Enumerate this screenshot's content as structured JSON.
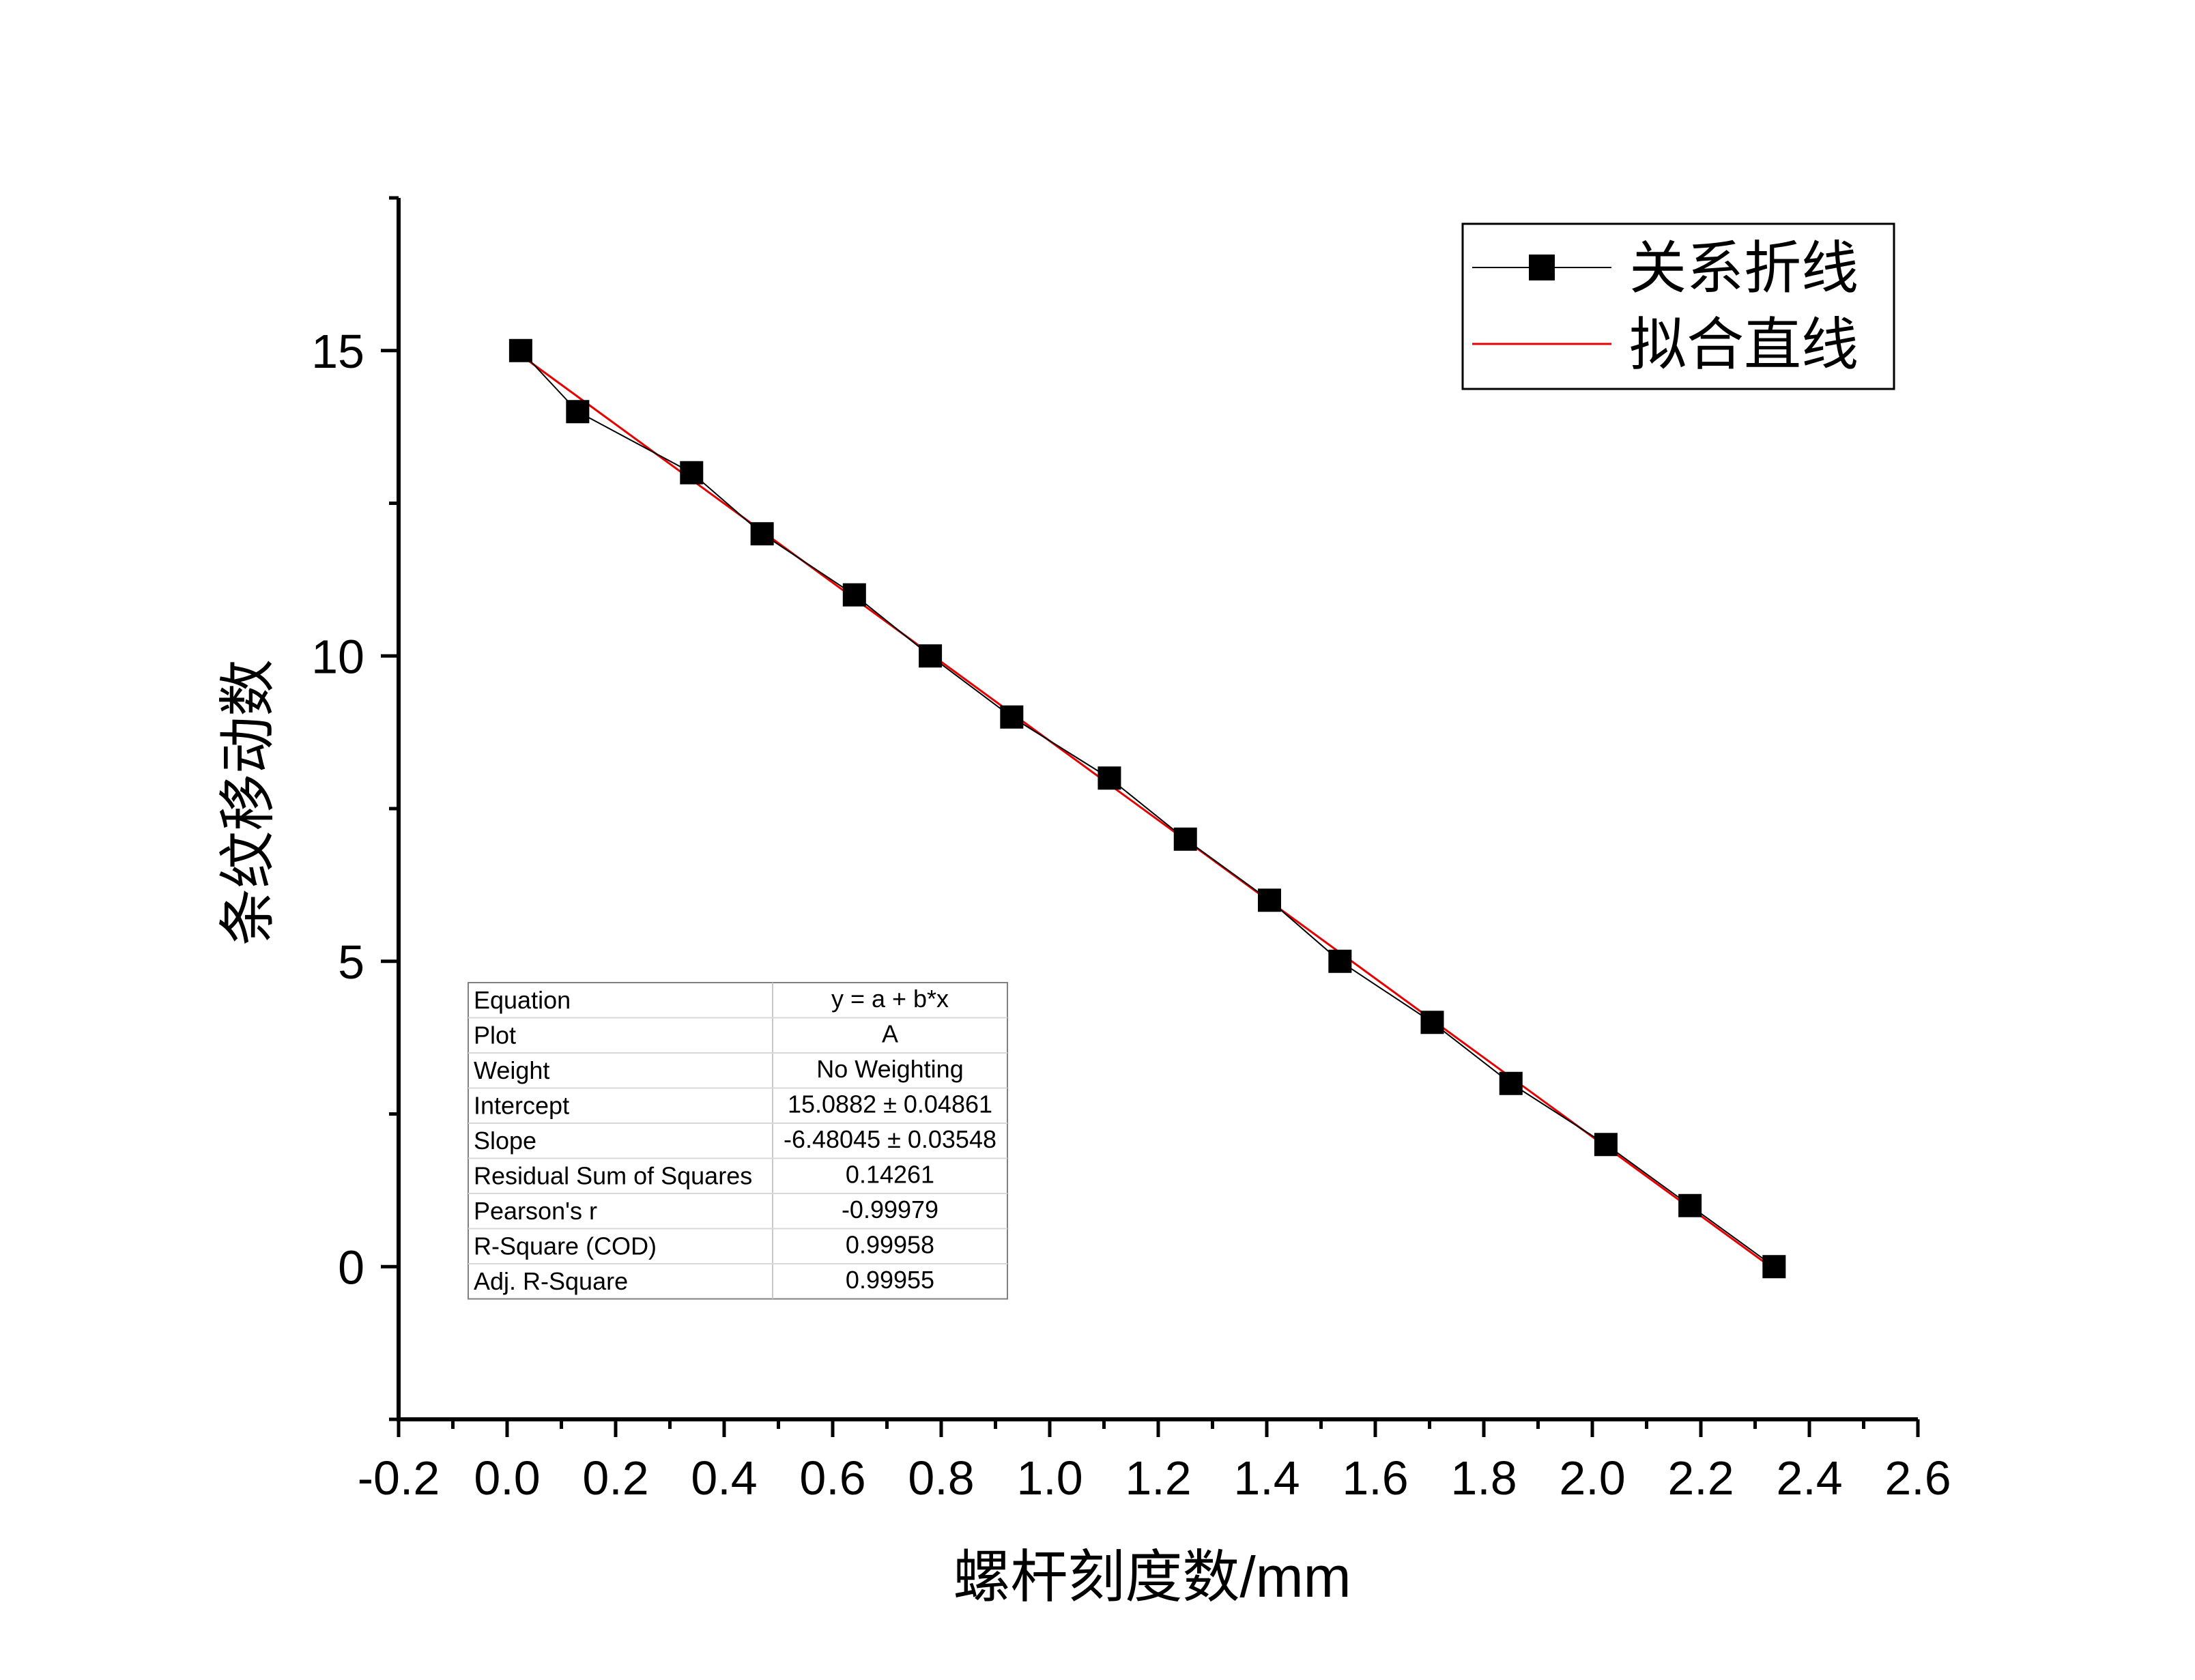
{
  "chart_data": {
    "type": "scatter",
    "title": "",
    "xlabel": "螺杆刻度数/mm",
    "ylabel": "条纹移动数",
    "xlim": [
      -0.2,
      2.6
    ],
    "ylim": [
      -2.5,
      17.5
    ],
    "x_ticks": [
      "-0.2",
      "0.0",
      "0.2",
      "0.4",
      "0.6",
      "0.8",
      "1.0",
      "1.2",
      "1.4",
      "1.6",
      "1.8",
      "2.0",
      "2.2",
      "2.4",
      "2.6"
    ],
    "y_ticks": [
      "0",
      "5",
      "10",
      "15"
    ],
    "grid": false,
    "legend_position": "top-right",
    "series": [
      {
        "name": "关系折线",
        "style": "line+square-markers",
        "color": "#000000",
        "x": [
          0.025,
          0.13,
          0.34,
          0.47,
          0.64,
          0.78,
          0.93,
          1.11,
          1.25,
          1.405,
          1.535,
          1.705,
          1.85,
          2.025,
          2.18,
          2.335
        ],
        "y": [
          15,
          14,
          13,
          12,
          11,
          10,
          9,
          8,
          7,
          6,
          5,
          4,
          3,
          2,
          1,
          0
        ]
      },
      {
        "name": "拟合直线",
        "style": "line",
        "color": "#e60000",
        "x": [
          0.025,
          2.335
        ],
        "y": [
          14.926,
          -0.044
        ]
      }
    ],
    "fit_table": [
      {
        "label": "Equation",
        "value": "y = a + b*x"
      },
      {
        "label": "Plot",
        "value": "A"
      },
      {
        "label": "Weight",
        "value": "No Weighting"
      },
      {
        "label": "Intercept",
        "value": "15.0882 ± 0.04861"
      },
      {
        "label": "Slope",
        "value": "-6.48045 ± 0.03548"
      },
      {
        "label": "Residual Sum of Squares",
        "value": "0.14261"
      },
      {
        "label": "Pearson's r",
        "value": "-0.99979"
      },
      {
        "label": "R-Square (COD)",
        "value": "0.99958"
      },
      {
        "label": "Adj. R-Square",
        "value": "0.99955"
      }
    ]
  }
}
